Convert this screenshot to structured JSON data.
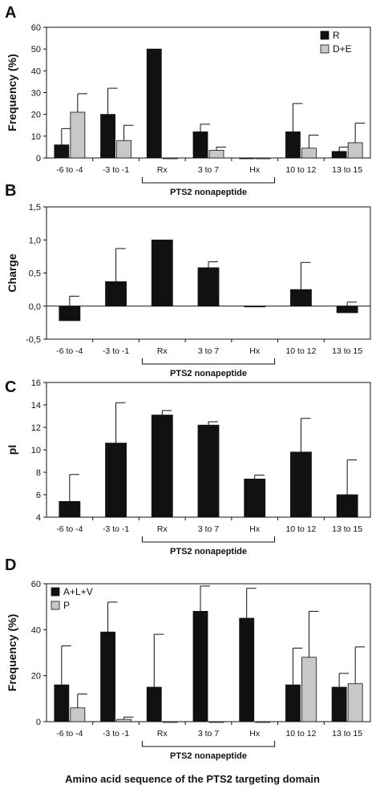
{
  "footer_label": "Amino acid sequence of the PTS2 targeting domain",
  "chart_data": [
    {
      "type": "bar",
      "panel": "A",
      "ylabel": "Frequency (%)",
      "ylim": [
        0,
        60
      ],
      "yticks": [
        0,
        10,
        20,
        30,
        40,
        50,
        60
      ],
      "ytick_labels": [
        "0",
        "10",
        "20",
        "30",
        "40",
        "50",
        "60"
      ],
      "grid": false,
      "legend_position": "top-right",
      "bracket_label": "PTS2 nonapeptide",
      "categories": [
        "-6 to -4",
        "-3 to -1",
        "Rx",
        "3 to 7",
        "Hx",
        "10 to 12",
        "13 to 15"
      ],
      "series": [
        {
          "name": "R",
          "color": "#111111",
          "values": [
            6,
            20,
            50,
            12,
            0,
            12,
            3
          ],
          "errors": [
            7.5,
            12,
            0,
            3.5,
            0,
            13,
            2
          ]
        },
        {
          "name": "D+E",
          "color": "#c8c8c8",
          "values": [
            21,
            8,
            0,
            3.5,
            0,
            4.5,
            7
          ],
          "errors": [
            8.5,
            7,
            0,
            1.5,
            0,
            6,
            9
          ]
        }
      ]
    },
    {
      "type": "bar",
      "panel": "B",
      "ylabel": "Charge",
      "ylim": [
        -0.5,
        1.5
      ],
      "yticks": [
        -0.5,
        0,
        0.5,
        1,
        1.5
      ],
      "ytick_labels": [
        "-0,5",
        "0,0",
        "0,5",
        "1,0",
        "1,5"
      ],
      "grid": false,
      "bracket_label": "PTS2 nonapeptide",
      "categories": [
        "-6 to -4",
        "-3 to -1",
        "Rx",
        "3 to 7",
        "Hx",
        "10 to 12",
        "13 to 15"
      ],
      "series": [
        {
          "color": "#111111",
          "values": [
            -0.22,
            0.37,
            1.0,
            0.58,
            -0.01,
            0.25,
            -0.1
          ],
          "errors": [
            0.37,
            0.5,
            0,
            0.09,
            0,
            0.41,
            0.16
          ]
        }
      ]
    },
    {
      "type": "bar",
      "panel": "C",
      "ylabel": "pI",
      "ylim": [
        4,
        16
      ],
      "yticks": [
        4,
        6,
        8,
        10,
        12,
        14,
        16
      ],
      "ytick_labels": [
        "4",
        "6",
        "8",
        "10",
        "12",
        "14",
        "16"
      ],
      "grid": false,
      "bracket_label": "PTS2 nonapeptide",
      "categories": [
        "-6 to -4",
        "-3 to -1",
        "Rx",
        "3 to 7",
        "Hx",
        "10 to 12",
        "13 to 15"
      ],
      "series": [
        {
          "color": "#111111",
          "values": [
            5.4,
            10.6,
            13.1,
            12.2,
            7.4,
            9.8,
            6.0
          ],
          "errors": [
            2.4,
            3.6,
            0.4,
            0.3,
            0.35,
            3.0,
            3.1
          ]
        }
      ]
    },
    {
      "type": "bar",
      "panel": "D",
      "ylabel": "Frequency (%)",
      "ylim": [
        0,
        60
      ],
      "yticks": [
        0,
        20,
        40,
        60
      ],
      "ytick_labels": [
        "0",
        "20",
        "40",
        "60"
      ],
      "grid": false,
      "legend_position": "top-left",
      "bracket_label": "PTS2 nonapeptide",
      "categories": [
        "-6 to -4",
        "-3 to -1",
        "Rx",
        "3 to 7",
        "Hx",
        "10 to 12",
        "13 to 15"
      ],
      "series": [
        {
          "name": "A+L+V",
          "color": "#111111",
          "values": [
            16,
            39,
            15,
            48,
            45,
            16,
            15
          ],
          "errors": [
            17,
            13,
            23,
            11,
            13,
            16,
            6
          ]
        },
        {
          "name": "P",
          "color": "#c8c8c8",
          "values": [
            6,
            1,
            0,
            0,
            0,
            28,
            16.5
          ],
          "errors": [
            6,
            1,
            0,
            0,
            0,
            20,
            16
          ]
        }
      ]
    }
  ]
}
